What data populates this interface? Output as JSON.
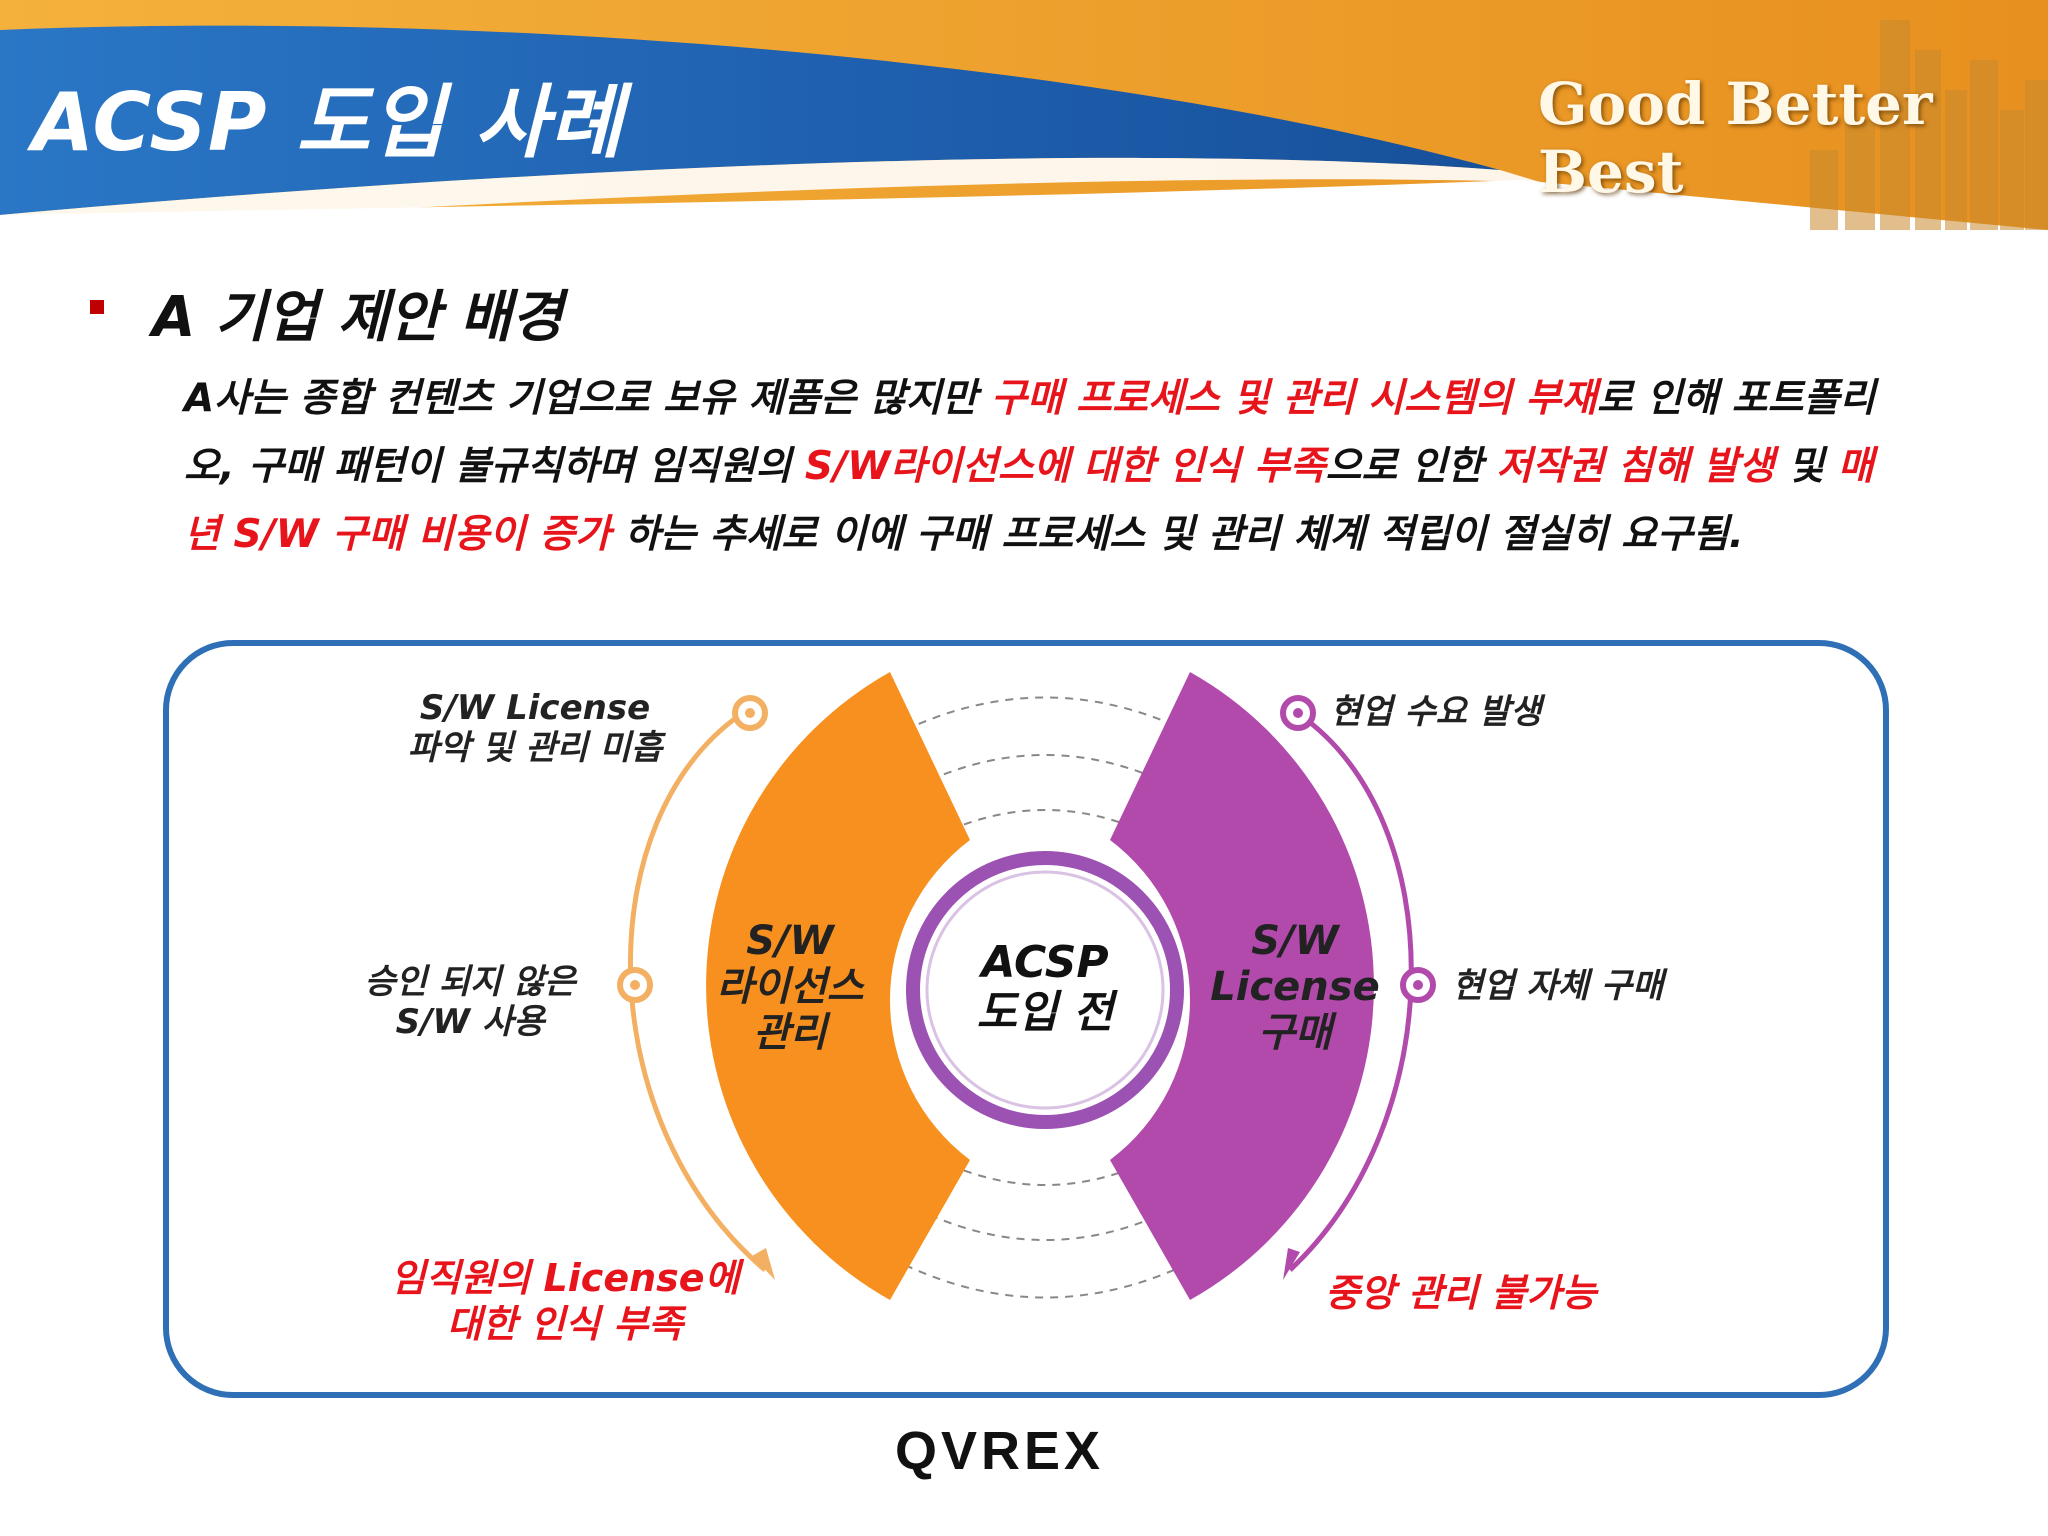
{
  "header": {
    "title": "ACSP 도입 사례",
    "slogan": "Good Better Best",
    "colors": {
      "blue": "#1e63b0",
      "orange": "#f0a02c"
    }
  },
  "section": {
    "title": "A 기업 제안 배경"
  },
  "paragraph": {
    "p1": "A사는 종합 컨텐츠 기업으로 보유 제품은 많지만 ",
    "h1": "구매 프로세스 및 관리 시스템의 부재",
    "p2": "로 인해 포트폴리오, 구매 패턴이 불규칙하며 임직원의 ",
    "h2": "S/W라이선스에 대한 인식 부족",
    "p3": "으로 인한 ",
    "h3": "저작권 침해 발생",
    "p4": " 및 ",
    "h4": "매년 S/W 구매 비용이 증가",
    "p5": " 하는 추세로 이에 구매 프로세스 및 관리 체계 적립이 절실히 요구됨."
  },
  "diagram": {
    "center": {
      "line1": "ACSP",
      "line2": "도입 전"
    },
    "left_segment": {
      "line1": "S/W",
      "line2": "라이선스",
      "line3": "관리",
      "color": "#f7901e"
    },
    "right_segment": {
      "line1": "S/W",
      "line2": "License",
      "line3": "구매",
      "color": "#b24aac"
    },
    "left_labels": {
      "top1": "S/W License",
      "top2": "파악 및 관리 미흡",
      "mid1": "승인 되지 않은",
      "mid2": "S/W 사용",
      "bottom1": "임직원의 License에",
      "bottom2": "대한 인식 부족"
    },
    "right_labels": {
      "top": "현업 수요 발생",
      "mid": "현업 자체 구매",
      "bottom": "중앙 관리 불가능"
    }
  },
  "footer": {
    "logo": "QVREX"
  }
}
